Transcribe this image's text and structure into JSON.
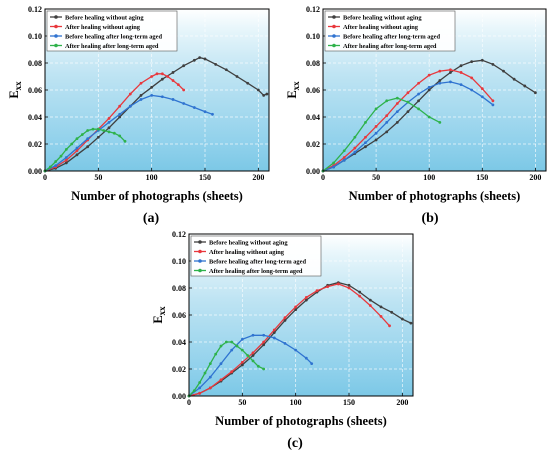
{
  "chart_data": [
    {
      "type": "line",
      "panel_label": "(a)",
      "xlabel": "Number of photographs (sheets)",
      "ylabel_main": "E",
      "ylabel_sub": "xx",
      "xlim": [
        0,
        210
      ],
      "ylim": [
        0.0,
        0.12
      ],
      "xticks": [
        "0",
        "50",
        "100",
        "150",
        "200"
      ],
      "yticks": [
        "0.00",
        "0.02",
        "0.04",
        "0.06",
        "0.08",
        "0.10",
        "0.12"
      ],
      "legend_position": "top-left",
      "series": [
        {
          "name": "Before healing without aging",
          "color": "#3f3f3f",
          "points": [
            [
              0,
              0
            ],
            [
              10,
              0.002
            ],
            [
              20,
              0.006
            ],
            [
              30,
              0.012
            ],
            [
              40,
              0.018
            ],
            [
              50,
              0.025
            ],
            [
              60,
              0.032
            ],
            [
              70,
              0.04
            ],
            [
              80,
              0.048
            ],
            [
              90,
              0.056
            ],
            [
              100,
              0.062
            ],
            [
              110,
              0.068
            ],
            [
              120,
              0.073
            ],
            [
              130,
              0.078
            ],
            [
              140,
              0.082
            ],
            [
              145,
              0.084
            ],
            [
              150,
              0.083
            ],
            [
              160,
              0.079
            ],
            [
              170,
              0.075
            ],
            [
              180,
              0.07
            ],
            [
              190,
              0.065
            ],
            [
              200,
              0.06
            ],
            [
              205,
              0.056
            ],
            [
              208,
              0.057
            ]
          ]
        },
        {
          "name": "After healing without aging",
          "color": "#e8383d",
          "points": [
            [
              0,
              0
            ],
            [
              10,
              0.003
            ],
            [
              20,
              0.008
            ],
            [
              30,
              0.015
            ],
            [
              40,
              0.023
            ],
            [
              50,
              0.031
            ],
            [
              60,
              0.039
            ],
            [
              70,
              0.048
            ],
            [
              80,
              0.057
            ],
            [
              90,
              0.065
            ],
            [
              100,
              0.07
            ],
            [
              105,
              0.072
            ],
            [
              110,
              0.072
            ],
            [
              115,
              0.07
            ],
            [
              120,
              0.067
            ],
            [
              125,
              0.064
            ],
            [
              130,
              0.06
            ]
          ]
        },
        {
          "name": "Before healing after long-term aged",
          "color": "#2f73d0",
          "points": [
            [
              0,
              0
            ],
            [
              10,
              0.004
            ],
            [
              20,
              0.01
            ],
            [
              30,
              0.017
            ],
            [
              40,
              0.024
            ],
            [
              50,
              0.03
            ],
            [
              60,
              0.036
            ],
            [
              70,
              0.042
            ],
            [
              80,
              0.048
            ],
            [
              90,
              0.053
            ],
            [
              100,
              0.056
            ],
            [
              110,
              0.055
            ],
            [
              120,
              0.053
            ],
            [
              130,
              0.05
            ],
            [
              140,
              0.047
            ],
            [
              150,
              0.044
            ],
            [
              157,
              0.042
            ]
          ]
        },
        {
          "name": "After healing after long-term aged",
          "color": "#2eb24b",
          "points": [
            [
              0,
              0
            ],
            [
              5,
              0.003
            ],
            [
              10,
              0.007
            ],
            [
              15,
              0.011
            ],
            [
              20,
              0.016
            ],
            [
              25,
              0.02
            ],
            [
              30,
              0.024
            ],
            [
              35,
              0.027
            ],
            [
              40,
              0.03
            ],
            [
              45,
              0.031
            ],
            [
              50,
              0.031
            ],
            [
              55,
              0.03
            ],
            [
              60,
              0.029
            ],
            [
              65,
              0.028
            ],
            [
              70,
              0.026
            ],
            [
              75,
              0.022
            ]
          ]
        }
      ]
    },
    {
      "type": "line",
      "panel_label": "(b)",
      "xlabel": "Number of photographs (sheets)",
      "ylabel_main": "E",
      "ylabel_sub": "xx",
      "xlim": [
        0,
        210
      ],
      "ylim": [
        0.0,
        0.12
      ],
      "xticks": [
        "0",
        "50",
        "100",
        "150",
        "200"
      ],
      "yticks": [
        "0.00",
        "0.02",
        "0.04",
        "0.06",
        "0.08",
        "0.10",
        "0.12"
      ],
      "legend_position": "top-left",
      "series": [
        {
          "name": "Before healing without aging",
          "color": "#3f3f3f",
          "points": [
            [
              0,
              0
            ],
            [
              10,
              0.003
            ],
            [
              20,
              0.008
            ],
            [
              30,
              0.013
            ],
            [
              40,
              0.018
            ],
            [
              50,
              0.023
            ],
            [
              60,
              0.029
            ],
            [
              70,
              0.036
            ],
            [
              80,
              0.044
            ],
            [
              90,
              0.052
            ],
            [
              100,
              0.06
            ],
            [
              110,
              0.067
            ],
            [
              120,
              0.073
            ],
            [
              130,
              0.078
            ],
            [
              140,
              0.081
            ],
            [
              150,
              0.082
            ],
            [
              160,
              0.079
            ],
            [
              170,
              0.074
            ],
            [
              180,
              0.068
            ],
            [
              190,
              0.063
            ],
            [
              200,
              0.058
            ]
          ]
        },
        {
          "name": "After healing without aging",
          "color": "#e8383d",
          "points": [
            [
              0,
              0
            ],
            [
              10,
              0.004
            ],
            [
              20,
              0.01
            ],
            [
              30,
              0.017
            ],
            [
              40,
              0.025
            ],
            [
              50,
              0.033
            ],
            [
              60,
              0.041
            ],
            [
              70,
              0.05
            ],
            [
              80,
              0.058
            ],
            [
              90,
              0.065
            ],
            [
              100,
              0.071
            ],
            [
              110,
              0.074
            ],
            [
              120,
              0.075
            ],
            [
              130,
              0.073
            ],
            [
              140,
              0.069
            ],
            [
              150,
              0.061
            ],
            [
              160,
              0.052
            ]
          ]
        },
        {
          "name": "Before healing after long-term aged",
          "color": "#2f73d0",
          "points": [
            [
              0,
              0
            ],
            [
              10,
              0.003
            ],
            [
              20,
              0.008
            ],
            [
              30,
              0.014
            ],
            [
              40,
              0.021
            ],
            [
              50,
              0.028
            ],
            [
              60,
              0.036
            ],
            [
              70,
              0.044
            ],
            [
              80,
              0.051
            ],
            [
              90,
              0.057
            ],
            [
              100,
              0.062
            ],
            [
              110,
              0.065
            ],
            [
              120,
              0.066
            ],
            [
              130,
              0.064
            ],
            [
              140,
              0.06
            ],
            [
              150,
              0.055
            ],
            [
              160,
              0.049
            ]
          ]
        },
        {
          "name": "After healing after long-term aged",
          "color": "#2eb24b",
          "points": [
            [
              0,
              0
            ],
            [
              10,
              0.006
            ],
            [
              20,
              0.015
            ],
            [
              30,
              0.025
            ],
            [
              40,
              0.036
            ],
            [
              50,
              0.046
            ],
            [
              60,
              0.052
            ],
            [
              70,
              0.054
            ],
            [
              80,
              0.051
            ],
            [
              90,
              0.046
            ],
            [
              100,
              0.04
            ],
            [
              110,
              0.036
            ]
          ]
        }
      ]
    },
    {
      "type": "line",
      "panel_label": "(c)",
      "xlabel": "Number of photographs (sheets)",
      "ylabel_main": "E",
      "ylabel_sub": "xx",
      "xlim": [
        0,
        210
      ],
      "ylim": [
        0.0,
        0.12
      ],
      "xticks": [
        "0",
        "50",
        "100",
        "150",
        "200"
      ],
      "yticks": [
        "0.00",
        "0.02",
        "0.04",
        "0.06",
        "0.08",
        "0.10",
        "0.12"
      ],
      "legend_position": "top-left",
      "series": [
        {
          "name": "Before healing without aging",
          "color": "#3f3f3f",
          "points": [
            [
              0,
              0
            ],
            [
              10,
              0.002
            ],
            [
              20,
              0.006
            ],
            [
              30,
              0.011
            ],
            [
              40,
              0.017
            ],
            [
              50,
              0.023
            ],
            [
              60,
              0.03
            ],
            [
              70,
              0.038
            ],
            [
              80,
              0.047
            ],
            [
              90,
              0.056
            ],
            [
              100,
              0.064
            ],
            [
              110,
              0.071
            ],
            [
              120,
              0.077
            ],
            [
              130,
              0.082
            ],
            [
              140,
              0.084
            ],
            [
              150,
              0.082
            ],
            [
              160,
              0.077
            ],
            [
              170,
              0.071
            ],
            [
              180,
              0.066
            ],
            [
              190,
              0.062
            ],
            [
              200,
              0.057
            ],
            [
              208,
              0.054
            ]
          ]
        },
        {
          "name": "After healing without aging",
          "color": "#e8383d",
          "points": [
            [
              0,
              0
            ],
            [
              10,
              0.002
            ],
            [
              20,
              0.006
            ],
            [
              30,
              0.012
            ],
            [
              40,
              0.018
            ],
            [
              50,
              0.025
            ],
            [
              60,
              0.032
            ],
            [
              70,
              0.04
            ],
            [
              80,
              0.049
            ],
            [
              90,
              0.058
            ],
            [
              100,
              0.066
            ],
            [
              110,
              0.073
            ],
            [
              120,
              0.078
            ],
            [
              130,
              0.081
            ],
            [
              140,
              0.083
            ],
            [
              150,
              0.08
            ],
            [
              160,
              0.074
            ],
            [
              170,
              0.067
            ],
            [
              180,
              0.059
            ],
            [
              188,
              0.052
            ]
          ]
        },
        {
          "name": "Before healing after long-term aged",
          "color": "#2f73d0",
          "points": [
            [
              0,
              0
            ],
            [
              10,
              0.006
            ],
            [
              20,
              0.014
            ],
            [
              30,
              0.024
            ],
            [
              40,
              0.034
            ],
            [
              50,
              0.042
            ],
            [
              60,
              0.045
            ],
            [
              70,
              0.045
            ],
            [
              80,
              0.043
            ],
            [
              90,
              0.039
            ],
            [
              100,
              0.034
            ],
            [
              110,
              0.028
            ],
            [
              115,
              0.024
            ]
          ]
        },
        {
          "name": "After healing after long-term aged",
          "color": "#2eb24b",
          "points": [
            [
              0,
              0
            ],
            [
              5,
              0.004
            ],
            [
              10,
              0.01
            ],
            [
              15,
              0.017
            ],
            [
              20,
              0.024
            ],
            [
              25,
              0.031
            ],
            [
              30,
              0.037
            ],
            [
              35,
              0.04
            ],
            [
              40,
              0.04
            ],
            [
              45,
              0.037
            ],
            [
              50,
              0.034
            ],
            [
              55,
              0.03
            ],
            [
              60,
              0.026
            ],
            [
              65,
              0.022
            ],
            [
              70,
              0.02
            ]
          ]
        }
      ]
    }
  ]
}
